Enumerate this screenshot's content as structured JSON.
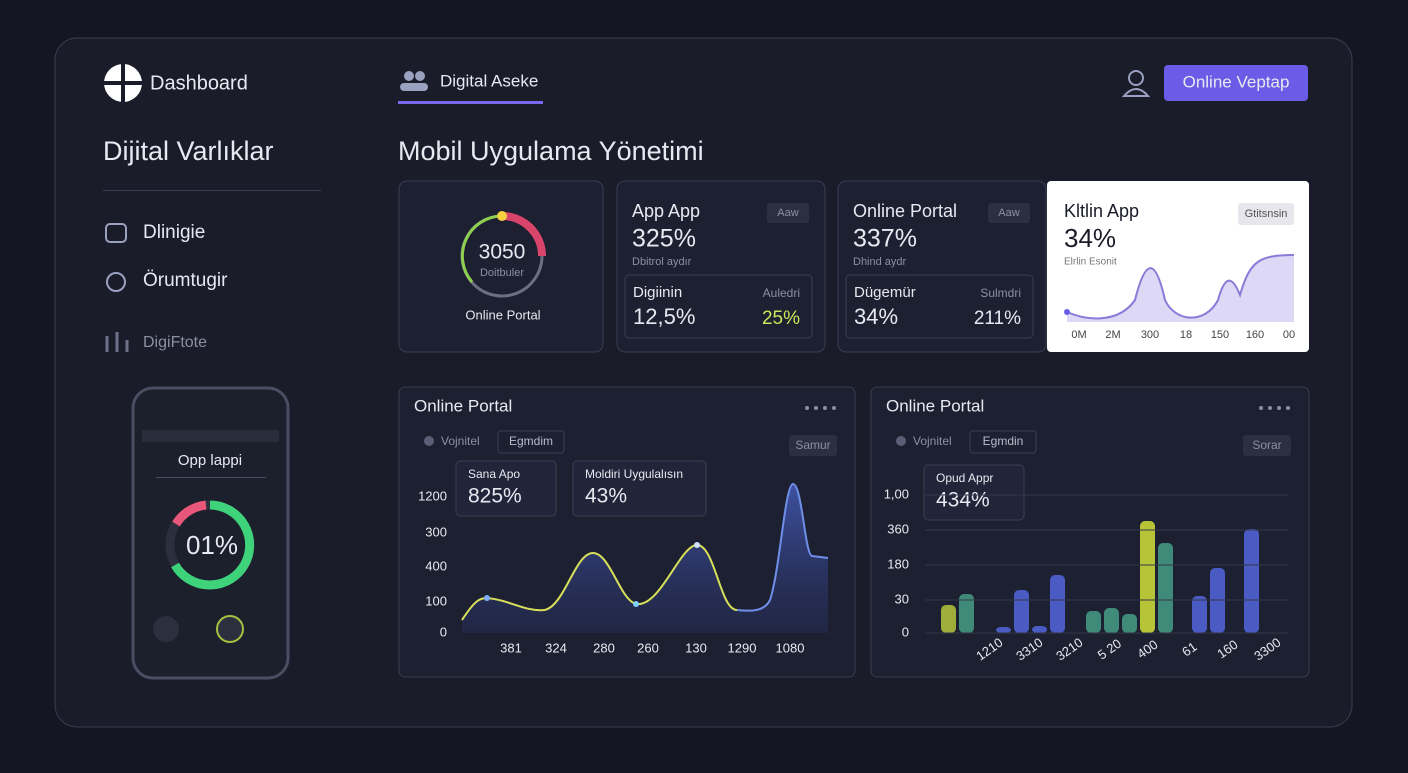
{
  "header": {
    "logo": "Dashboard",
    "tab": "Digital Aseke",
    "button": "Online Veptap"
  },
  "sidebar": {
    "title": "Dijital Varlıklar",
    "items": [
      "Dlinigie",
      "Örumtugir",
      "DigiFtote"
    ],
    "phone": {
      "title": "Opp lappi",
      "gauge": "01%"
    }
  },
  "main": {
    "title": "Mobil Uygulama Yönetimi",
    "cards": [
      {
        "value": "3050",
        "sub": "Doitbuler",
        "label": "Online Portal"
      },
      {
        "title": "App App",
        "badge": "Aaw",
        "value": "325%",
        "sub": "Dbitrol aydır",
        "left_label": "Digiinin",
        "right_label": "Auledri",
        "left_value": "12,5%",
        "right_value": "25%"
      },
      {
        "title": "Online Portal",
        "badge": "Aaw",
        "value": "337%",
        "sub": "Dhind aydr",
        "left_label": "Dügemür",
        "right_label": "Sulmdri",
        "left_value": "34%",
        "right_value": "211%"
      },
      {
        "title": "Kltlin App",
        "badge": "Gtitsnsin",
        "value": "34%",
        "sub": "Elrlin Esonit",
        "xlabels": [
          "0M",
          "2M",
          "300",
          "18",
          "150",
          "160",
          "00"
        ]
      }
    ],
    "panels": [
      {
        "title": "Online Portal",
        "filter": "Vojnitel",
        "chip": "Egmdim",
        "button": "Samur",
        "boxes": [
          {
            "label": "Sana Apo",
            "value": "825%"
          },
          {
            "label": "Moldiri Uygulalısın",
            "value": "43%"
          }
        ],
        "ylabels": [
          "1200",
          "300",
          "400",
          "100",
          "0"
        ],
        "xlabels": [
          "381",
          "324",
          "280",
          "260",
          "130",
          "1290",
          "1080"
        ]
      },
      {
        "title": "Online Portal",
        "filter": "Vojnitel",
        "chip": "Egmdin",
        "button": "Sorar",
        "boxes": [
          {
            "label": "Opud Appr",
            "value": "434%"
          }
        ],
        "ylabels": [
          "1,00",
          "360",
          "180",
          "30",
          "0"
        ],
        "xlabels": [
          "1210",
          "3310",
          "3210",
          "5 20",
          "400",
          "61",
          "160",
          "3300"
        ]
      }
    ]
  }
}
